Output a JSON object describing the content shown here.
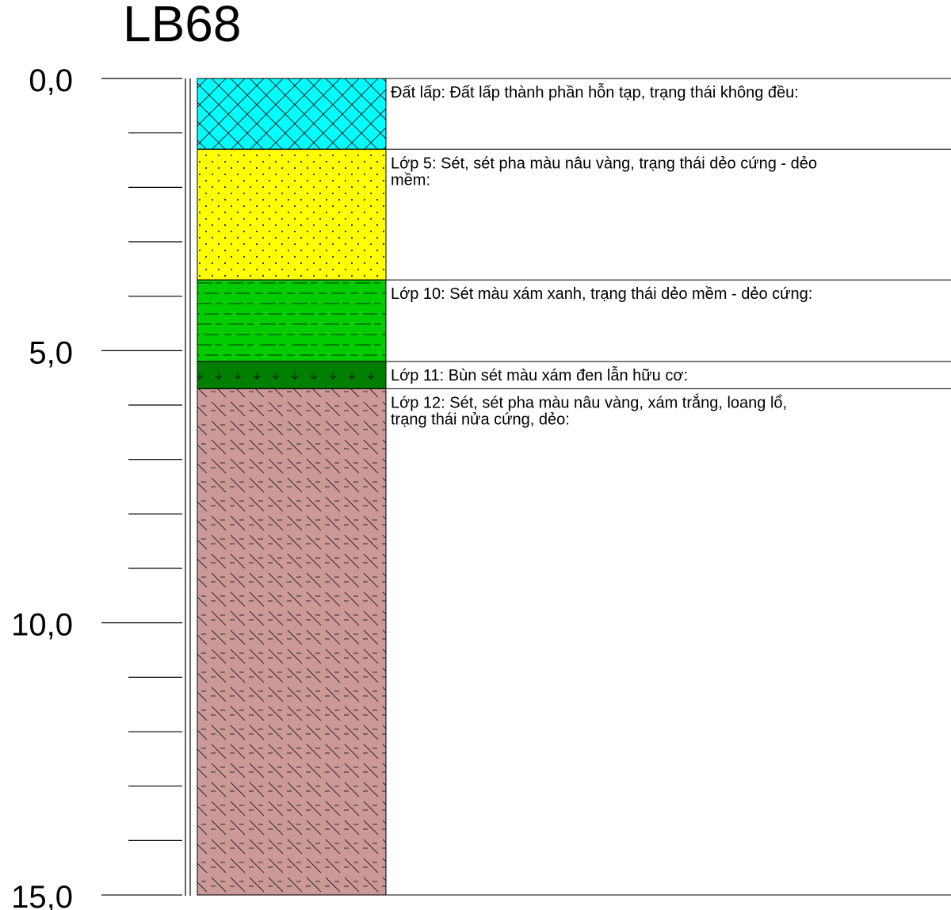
{
  "borehole": {
    "name": "LB68"
  },
  "depth_scale": {
    "min": 0.0,
    "max": 15.0,
    "major_step": 5.0,
    "minor_step": 1.0,
    "labels": [
      "0,0",
      "5,0",
      "10,0",
      "15,0"
    ]
  },
  "layers": [
    {
      "top": 0.0,
      "bottom": 1.3,
      "pattern": "cross-hatch",
      "fill": "#00ffff",
      "lines": [
        "Đất lấp: Đất lấp thành phần hỗn tạp, trạng thái không đều:"
      ]
    },
    {
      "top": 1.3,
      "bottom": 3.7,
      "pattern": "dots",
      "fill": "#ffff00",
      "lines": [
        "Lớp 5: Sét, sét pha màu nâu vàng, trạng thái dẻo cứng - dẻo",
        "mềm:"
      ]
    },
    {
      "top": 3.7,
      "bottom": 5.2,
      "pattern": "dashes",
      "fill": "#00cc00",
      "lines": [
        "Lớp 10: Sét màu xám xanh, trạng thái dẻo mềm - dẻo cứng:"
      ]
    },
    {
      "top": 5.2,
      "bottom": 5.7,
      "pattern": "marsh",
      "fill": "#007f00",
      "lines": [
        "Lớp 11: Bùn sét màu xám đen lẫn hữu cơ:"
      ]
    },
    {
      "top": 5.7,
      "bottom": 15.0,
      "pattern": "diagonal-dash",
      "fill": "#cc9999",
      "lines": [
        "Lớp 12: Sét, sét pha màu nâu vàng, xám trắng, loang lổ,",
        "trạng thái nửa cứng, dẻo:"
      ]
    }
  ]
}
